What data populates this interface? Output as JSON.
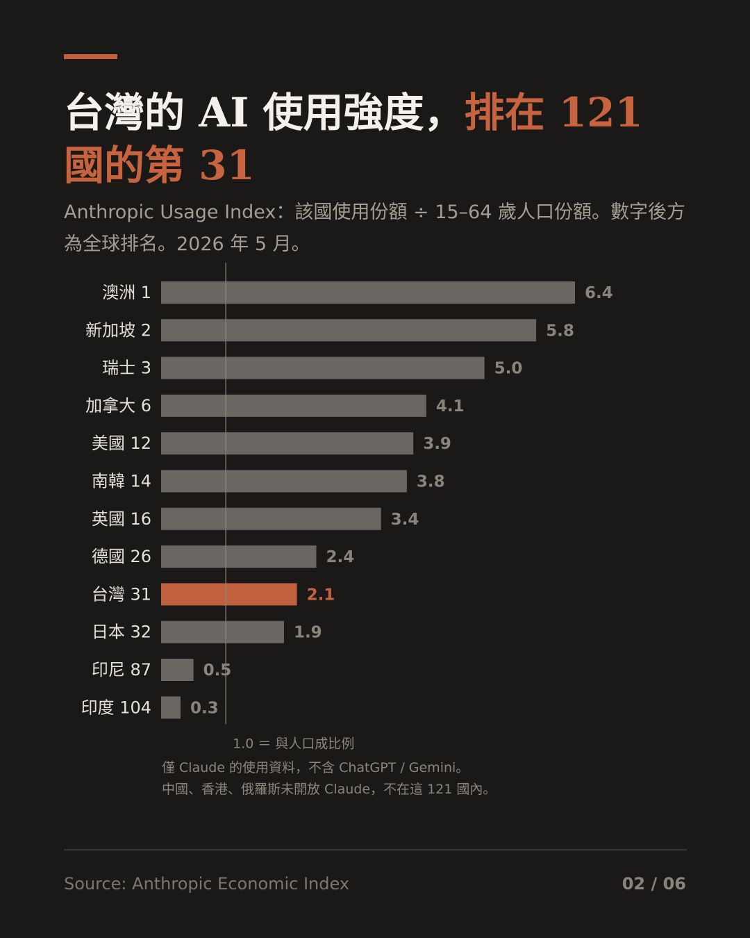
{
  "title": {
    "part1": "台灣的 AI 使用強度，",
    "part2": "排在 121 國的第 31"
  },
  "subtitle": "Anthropic Usage Index：該國使用份額 ÷ 15–64 歲人口份額。數字後方為全球排名。2026 年 5 月。",
  "colors": {
    "background": "#1b1917",
    "bar": "#6b6661",
    "highlight": "#c0603f",
    "title": "#f4f1ec",
    "muted": "#8a847d"
  },
  "chart_data": {
    "type": "bar",
    "orientation": "horizontal",
    "categories": [
      "澳洲 1",
      "新加坡 2",
      "瑞士 3",
      "加拿大 6",
      "美國 12",
      "南韓 14",
      "英國 16",
      "德國 26",
      "台灣 31",
      "日本 32",
      "印尼 87",
      "印度 104"
    ],
    "values": [
      6.4,
      5.8,
      5.0,
      4.1,
      3.9,
      3.8,
      3.4,
      2.4,
      2.1,
      1.9,
      0.5,
      0.3
    ],
    "value_labels": [
      "6.4",
      "5.8",
      "5.0",
      "4.1",
      "3.9",
      "3.8",
      "3.4",
      "2.4",
      "2.1",
      "1.9",
      "0.5",
      "0.3"
    ],
    "highlight_category": "台灣 31",
    "reference_line": {
      "value": 1.0,
      "label": "1.0 ＝ 與人口成比例"
    },
    "xlim": [
      0,
      6.4
    ],
    "grid": false
  },
  "notes": [
    "僅 Claude 的使用資料，不含 ChatGPT / Gemini。",
    "中國、香港、俄羅斯未開放 Claude，不在這 121 國內。"
  ],
  "footer": {
    "source": "Source: Anthropic Economic Index",
    "page": "02 / 06"
  }
}
